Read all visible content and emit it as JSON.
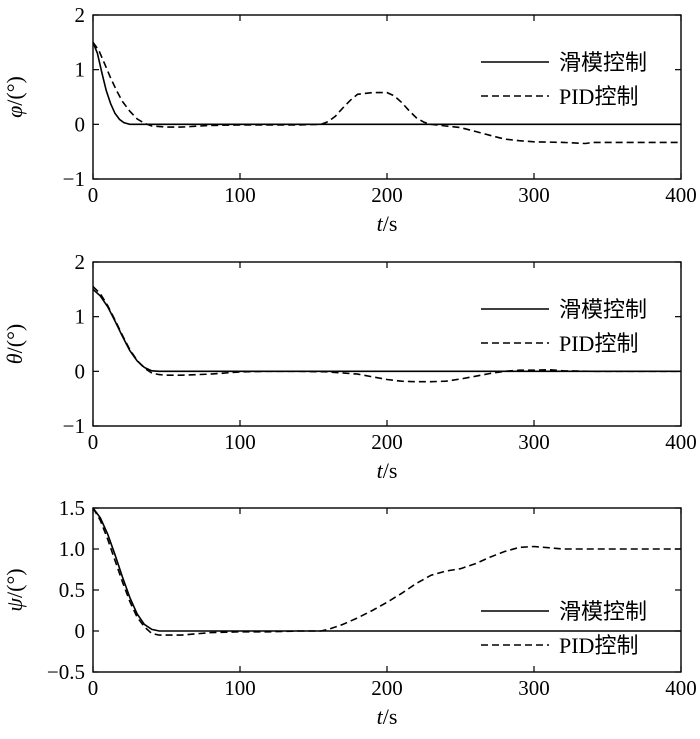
{
  "chart_data": [
    {
      "type": "line",
      "panel": "phi",
      "xlabel_italic": "t",
      "xlabel_unit": "/s",
      "ylabel_italic": "φ",
      "ylabel_unit": "/(°)",
      "xlim": [
        0,
        400
      ],
      "ylim": [
        -1,
        2
      ],
      "xticks": [
        0,
        100,
        200,
        300,
        400
      ],
      "yticks": [
        -1,
        0,
        1,
        2
      ],
      "ytick_labels": [
        "−1",
        "0",
        "1",
        "2"
      ],
      "grid": false,
      "legend_position": "top-right",
      "series": [
        {
          "name": "滑模控制",
          "style": "solid",
          "x": [
            0,
            3,
            6,
            9,
            12,
            15,
            18,
            21,
            25,
            30,
            40,
            400
          ],
          "y": [
            1.5,
            1.3,
            0.95,
            0.62,
            0.38,
            0.2,
            0.09,
            0.03,
            0.0,
            0.0,
            0.0,
            0.0
          ]
        },
        {
          "name": "PID控制",
          "style": "dashed",
          "x": [
            0,
            4,
            8,
            12,
            16,
            20,
            25,
            30,
            35,
            40,
            50,
            60,
            80,
            100,
            120,
            140,
            155,
            160,
            165,
            170,
            175,
            180,
            190,
            200,
            205,
            210,
            215,
            220,
            225,
            230,
            240,
            250,
            260,
            270,
            280,
            290,
            300,
            320,
            335,
            340,
            360,
            380,
            400
          ],
          "y": [
            1.5,
            1.35,
            1.1,
            0.85,
            0.62,
            0.42,
            0.24,
            0.1,
            0.02,
            -0.03,
            -0.05,
            -0.05,
            -0.02,
            -0.01,
            -0.01,
            -0.01,
            0.0,
            0.05,
            0.15,
            0.3,
            0.44,
            0.55,
            0.58,
            0.58,
            0.52,
            0.4,
            0.25,
            0.12,
            0.04,
            0.0,
            -0.03,
            -0.06,
            -0.13,
            -0.2,
            -0.27,
            -0.3,
            -0.32,
            -0.33,
            -0.35,
            -0.33,
            -0.33,
            -0.33,
            -0.33
          ]
        }
      ]
    },
    {
      "type": "line",
      "panel": "theta",
      "xlabel_italic": "t",
      "xlabel_unit": "/s",
      "ylabel_italic": "θ",
      "ylabel_unit": "/(°)",
      "xlim": [
        0,
        400
      ],
      "ylim": [
        -1,
        2
      ],
      "xticks": [
        0,
        100,
        200,
        300,
        400
      ],
      "yticks": [
        -1,
        0,
        1,
        2
      ],
      "ytick_labels": [
        "−1",
        "0",
        "1",
        "2"
      ],
      "grid": false,
      "legend_position": "top-right",
      "series": [
        {
          "name": "滑模控制",
          "style": "solid",
          "x": [
            0,
            5,
            10,
            15,
            20,
            25,
            30,
            35,
            40,
            45,
            50,
            400
          ],
          "y": [
            1.5,
            1.38,
            1.18,
            0.92,
            0.64,
            0.38,
            0.19,
            0.07,
            0.01,
            0.0,
            0.0,
            0.0
          ]
        },
        {
          "name": "PID控制",
          "style": "dashed",
          "x": [
            0,
            5,
            10,
            15,
            20,
            25,
            30,
            35,
            40,
            45,
            50,
            60,
            80,
            100,
            120,
            140,
            160,
            180,
            190,
            200,
            210,
            220,
            230,
            240,
            250,
            260,
            270,
            280,
            290,
            300,
            310,
            320,
            340,
            360,
            380,
            400
          ],
          "y": [
            1.55,
            1.42,
            1.2,
            0.94,
            0.66,
            0.4,
            0.2,
            0.06,
            -0.03,
            -0.06,
            -0.07,
            -0.07,
            -0.05,
            -0.01,
            0.0,
            0.0,
            -0.01,
            -0.05,
            -0.1,
            -0.15,
            -0.18,
            -0.19,
            -0.19,
            -0.18,
            -0.14,
            -0.09,
            -0.04,
            0.0,
            0.02,
            0.02,
            0.03,
            0.01,
            0.0,
            0.0,
            0.0,
            0.0
          ]
        }
      ]
    },
    {
      "type": "line",
      "panel": "psi",
      "xlabel_italic": "t",
      "xlabel_unit": "/s",
      "ylabel_italic": "ψ",
      "ylabel_unit": "/(°)",
      "xlim": [
        0,
        400
      ],
      "ylim": [
        -0.5,
        1.5
      ],
      "xticks": [
        0,
        100,
        200,
        300,
        400
      ],
      "yticks": [
        -0.5,
        0,
        0.5,
        1.0,
        1.5
      ],
      "ytick_labels": [
        "−0.5",
        "0",
        "0.5",
        "1.0",
        "1.5"
      ],
      "grid": false,
      "legend_position": "center-right",
      "series": [
        {
          "name": "滑模控制",
          "style": "solid",
          "x": [
            0,
            5,
            10,
            15,
            20,
            25,
            30,
            35,
            40,
            45,
            50,
            400
          ],
          "y": [
            1.5,
            1.38,
            1.18,
            0.93,
            0.66,
            0.41,
            0.21,
            0.08,
            0.02,
            0.0,
            0.0,
            0.0
          ]
        },
        {
          "name": "PID控制",
          "style": "dashed",
          "x": [
            0,
            5,
            10,
            15,
            20,
            25,
            30,
            35,
            40,
            45,
            50,
            60,
            80,
            100,
            120,
            140,
            155,
            160,
            170,
            180,
            190,
            200,
            210,
            220,
            230,
            240,
            250,
            260,
            270,
            280,
            290,
            300,
            320,
            350,
            380,
            400
          ],
          "y": [
            1.5,
            1.35,
            1.12,
            0.86,
            0.6,
            0.36,
            0.17,
            0.05,
            -0.03,
            -0.05,
            -0.05,
            -0.05,
            -0.02,
            -0.01,
            -0.01,
            0.0,
            0.0,
            0.02,
            0.08,
            0.16,
            0.25,
            0.35,
            0.46,
            0.58,
            0.68,
            0.73,
            0.76,
            0.82,
            0.9,
            0.97,
            1.02,
            1.03,
            1.0,
            1.0,
            1.0,
            1.0
          ]
        }
      ]
    }
  ]
}
